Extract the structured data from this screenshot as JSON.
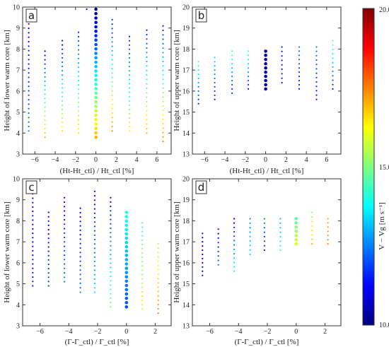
{
  "colorbar": {
    "label": "V − Vg [m s⁻¹]",
    "max_label": "20.00",
    "mid_label": "15.00",
    "min_label": "10.00",
    "range": [
      10,
      20
    ]
  },
  "chart_data": [
    {
      "type": "scatter",
      "panel_label": "a",
      "xlabel": "(Ht-Ht_ctl) / Ht_ctl [%]",
      "ylabel": "Height of lower warm core [km]",
      "xlim": [
        -7.2,
        7.4
      ],
      "ylim": [
        3,
        10
      ],
      "xticks": [
        -6,
        -4,
        -2,
        0,
        2,
        4,
        6
      ],
      "yticks": [
        3,
        4,
        5,
        6,
        7,
        8,
        9,
        10
      ],
      "color_scale": [
        10,
        20
      ],
      "columns": [
        {
          "x": -6.6,
          "ymin": 4.1,
          "ymax": 9.2,
          "color_low": 12.5,
          "color_high": 11.0
        },
        {
          "x": -5.0,
          "ymin": 3.8,
          "ymax": 7.9,
          "color_low": 17.0,
          "color_high": 11.0
        },
        {
          "x": -3.3,
          "ymin": 4.1,
          "ymax": 8.4,
          "color_low": 16.5,
          "color_high": 11.0
        },
        {
          "x": -1.7,
          "ymin": 4.0,
          "ymax": 8.8,
          "color_low": 16.5,
          "color_high": 11.5
        },
        {
          "x": -0.9,
          "ymin": 9.9,
          "ymax": 9.9,
          "color_low": 10.5,
          "color_high": 10.5
        },
        {
          "x": 0.0,
          "ymin": 3.8,
          "ymax": 9.9,
          "color_low": 17.0,
          "color_high": 10.2,
          "big": true
        },
        {
          "x": 1.6,
          "ymin": 4.1,
          "ymax": 9.4,
          "color_low": 17.5,
          "color_high": 11.5
        },
        {
          "x": 3.3,
          "ymin": 4.1,
          "ymax": 8.6,
          "color_low": 16.0,
          "color_high": 11.5
        },
        {
          "x": 5.0,
          "ymin": 4.0,
          "ymax": 8.9,
          "color_low": 17.0,
          "color_high": 11.5
        },
        {
          "x": 6.6,
          "ymin": 3.6,
          "ymax": 9.1,
          "color_low": 17.5,
          "color_high": 11.5
        }
      ]
    },
    {
      "type": "scatter",
      "panel_label": "b",
      "xlabel": "(Ht-Ht_ctl) / Ht_ctl [%]",
      "ylabel": "Height of upper warm core [km]",
      "xlim": [
        -7.2,
        7.4
      ],
      "ylim": [
        13,
        20
      ],
      "xticks": [
        -6,
        -4,
        -2,
        0,
        2,
        4,
        6
      ],
      "yticks": [
        13,
        14,
        15,
        16,
        17,
        18,
        19,
        20
      ],
      "color_scale": [
        10,
        20
      ],
      "columns": [
        {
          "x": -6.6,
          "ymin": 15.4,
          "ymax": 17.4,
          "color_low": 11.5,
          "color_high": 14.5
        },
        {
          "x": -5.0,
          "ymin": 15.6,
          "ymax": 17.6,
          "color_low": 11.5,
          "color_high": 13.5
        },
        {
          "x": -3.3,
          "ymin": 15.9,
          "ymax": 17.9,
          "color_low": 11.5,
          "color_high": 14.5
        },
        {
          "x": -1.7,
          "ymin": 16.1,
          "ymax": 17.9,
          "color_low": 11.5,
          "color_high": 14.5
        },
        {
          "x": 0.0,
          "ymin": 16.1,
          "ymax": 17.9,
          "color_low": 10.3,
          "color_high": 10.3,
          "big": true
        },
        {
          "x": 1.6,
          "ymin": 16.4,
          "ymax": 18.1,
          "color_low": 11.5,
          "color_high": 11.5
        },
        {
          "x": 3.3,
          "ymin": 16.1,
          "ymax": 18.1,
          "color_low": 11.5,
          "color_high": 12.5
        },
        {
          "x": 5.0,
          "ymin": 15.6,
          "ymax": 18.1,
          "color_low": 11.5,
          "color_high": 12.5
        },
        {
          "x": 6.6,
          "ymin": 16.1,
          "ymax": 18.4,
          "color_low": 11.5,
          "color_high": 15.0
        }
      ]
    },
    {
      "type": "scatter",
      "panel_label": "c",
      "xlabel": "(Γ-Γ_ctl) / Γ_ctl [%]",
      "ylabel": "Height of lower warm core [km]",
      "xlim": [
        -7.2,
        3.1
      ],
      "ylim": [
        3,
        10
      ],
      "xticks": [
        -6,
        -4,
        -2,
        0,
        2
      ],
      "yticks": [
        3,
        4,
        5,
        6,
        7,
        8,
        9,
        10
      ],
      "color_scale": [
        10,
        20
      ],
      "columns": [
        {
          "x": -6.5,
          "ymin": 4.9,
          "ymax": 9.7,
          "color_low": 11.5,
          "color_high": 11.0
        },
        {
          "x": -5.4,
          "ymin": 4.9,
          "ymax": 8.4,
          "color_low": 12.0,
          "color_high": 11.0
        },
        {
          "x": -4.3,
          "ymin": 5.1,
          "ymax": 9.1,
          "color_low": 12.5,
          "color_high": 11.0
        },
        {
          "x": -3.2,
          "ymin": 4.6,
          "ymax": 8.6,
          "color_low": 12.5,
          "color_high": 11.0
        },
        {
          "x": -2.2,
          "ymin": 4.6,
          "ymax": 9.4,
          "color_low": 13.5,
          "color_high": 11.0
        },
        {
          "x": -1.1,
          "ymin": 3.9,
          "ymax": 9.1,
          "color_low": 15.0,
          "color_high": 11.0
        },
        {
          "x": 0.0,
          "ymin": 3.9,
          "ymax": 8.4,
          "color_low": 12.0,
          "color_high": 14.0,
          "big": true
        },
        {
          "x": 1.1,
          "ymin": 3.8,
          "ymax": 7.9,
          "color_low": 16.0,
          "color_high": 14.5
        },
        {
          "x": 2.2,
          "ymin": 3.6,
          "ymax": 6.9,
          "color_low": 17.5,
          "color_high": 15.5
        }
      ]
    },
    {
      "type": "scatter",
      "panel_label": "d",
      "xlabel": "(Γ-Γ_ctl) / Γ_ctl [%]",
      "ylabel": "Height of upper warm core [km]",
      "xlim": [
        -7.2,
        3.1
      ],
      "ylim": [
        13,
        20
      ],
      "xticks": [
        -6,
        -4,
        -2,
        0,
        2
      ],
      "yticks": [
        13,
        14,
        15,
        16,
        17,
        18,
        19,
        20
      ],
      "color_scale": [
        10,
        20
      ],
      "columns": [
        {
          "x": -6.5,
          "ymin": 15.4,
          "ymax": 17.4,
          "color_low": 11.0,
          "color_high": 11.0
        },
        {
          "x": -5.4,
          "ymin": 15.9,
          "ymax": 17.6,
          "color_low": 12.5,
          "color_high": 11.0
        },
        {
          "x": -4.3,
          "ymin": 15.6,
          "ymax": 18.1,
          "color_low": 14.0,
          "color_high": 11.0
        },
        {
          "x": -3.2,
          "ymin": 16.4,
          "ymax": 18.1,
          "color_low": 13.5,
          "color_high": 12.5
        },
        {
          "x": -2.2,
          "ymin": 16.6,
          "ymax": 18.1,
          "color_low": 11.5,
          "color_high": 12.5
        },
        {
          "x": -1.1,
          "ymin": 16.6,
          "ymax": 18.1,
          "color_low": 14.0,
          "color_high": 13.0
        },
        {
          "x": 0.0,
          "ymin": 16.9,
          "ymax": 18.1,
          "color_low": 16.0,
          "color_high": 14.5,
          "big": true
        },
        {
          "x": 1.1,
          "ymin": 16.9,
          "ymax": 18.4,
          "color_low": 17.0,
          "color_high": 15.0
        },
        {
          "x": 2.2,
          "ymin": 16.9,
          "ymax": 18.1,
          "color_low": 17.5,
          "color_high": 17.0
        }
      ]
    }
  ]
}
